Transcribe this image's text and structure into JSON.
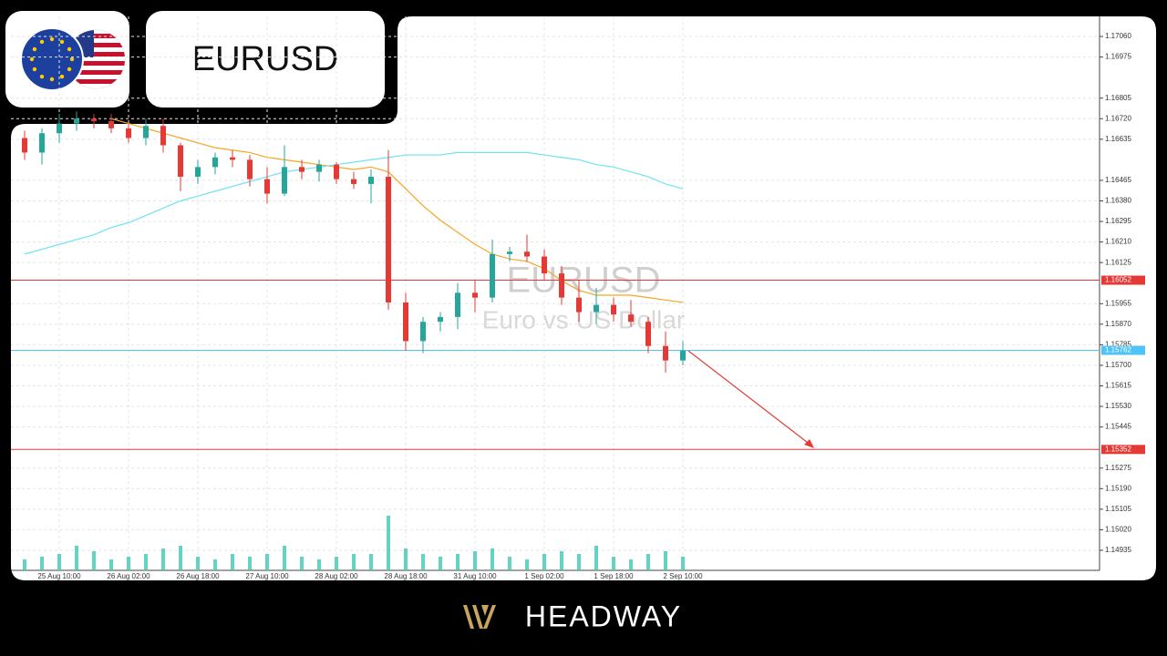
{
  "header": {
    "symbol": "EURUSD"
  },
  "chart_data": {
    "type": "candlestick",
    "watermark_title": "EURUSD",
    "watermark_subtitle": "Euro vs US Dollar",
    "categories": [
      null,
      null,
      "25 Aug 10:00",
      null,
      null,
      null,
      "26 Aug 02:00",
      null,
      null,
      null,
      "26 Aug 18:00",
      null,
      null,
      null,
      "27 Aug 10:00",
      null,
      null,
      null,
      "28 Aug 02:00",
      null,
      null,
      null,
      "28 Aug 18:00",
      null,
      null,
      null,
      "31 Aug 10:00",
      null,
      null,
      null,
      "1 Sep 02:00",
      null,
      null,
      null,
      "1 Sep 18:00",
      null,
      null,
      null,
      "2 Sep 10:00"
    ],
    "open": [
      1.1664,
      1.1658,
      1.1666,
      1.167,
      1.1672,
      1.1671,
      1.1668,
      1.1664,
      1.1669,
      1.1661,
      1.1648,
      1.1652,
      1.1656,
      1.1655,
      1.1647,
      1.1641,
      1.1652,
      1.165,
      1.1653,
      1.1647,
      1.1645,
      1.1648,
      1.1596,
      1.158,
      1.1588,
      1.159,
      1.16,
      1.1598,
      1.1616,
      1.1617,
      1.1615,
      1.1608,
      1.1598,
      1.1592,
      1.1595,
      1.1591,
      1.1588,
      1.1578,
      1.1572
    ],
    "high": [
      1.1667,
      1.1668,
      1.1674,
      1.1675,
      1.1674,
      1.1674,
      1.167,
      1.1672,
      1.1672,
      1.1662,
      1.1655,
      1.1658,
      1.1659,
      1.1657,
      1.1652,
      1.1661,
      1.1655,
      1.1655,
      1.1654,
      1.165,
      1.1651,
      1.1659,
      1.16,
      1.159,
      1.1592,
      1.1604,
      1.1605,
      1.1622,
      1.1619,
      1.1624,
      1.1618,
      1.1611,
      1.1605,
      1.1602,
      1.1598,
      1.1597,
      1.159,
      1.1584,
      1.158
    ],
    "low": [
      1.1655,
      1.1653,
      1.1662,
      1.1667,
      1.1668,
      1.1666,
      1.1662,
      1.1661,
      1.1658,
      1.1642,
      1.1645,
      1.1649,
      1.1652,
      1.1644,
      1.1637,
      1.164,
      1.1647,
      1.1646,
      1.1645,
      1.1643,
      1.1637,
      1.1593,
      1.1576,
      1.1575,
      1.1584,
      1.1585,
      1.1592,
      1.1596,
      1.1613,
      1.1613,
      1.1605,
      1.1595,
      1.1588,
      1.1587,
      1.1588,
      1.1586,
      1.1575,
      1.1567,
      1.157
    ],
    "close": [
      1.1658,
      1.1666,
      1.167,
      1.1672,
      1.1671,
      1.1668,
      1.1664,
      1.1669,
      1.1661,
      1.1648,
      1.1652,
      1.1656,
      1.1655,
      1.1647,
      1.1641,
      1.1652,
      1.165,
      1.1653,
      1.1647,
      1.1645,
      1.1648,
      1.1596,
      1.158,
      1.1588,
      1.159,
      1.16,
      1.1598,
      1.1616,
      1.1617,
      1.1615,
      1.1608,
      1.1598,
      1.1592,
      1.1595,
      1.1591,
      1.1588,
      1.1578,
      1.1572,
      1.1576
    ],
    "volume": [
      20,
      25,
      30,
      45,
      35,
      20,
      25,
      30,
      40,
      45,
      25,
      20,
      30,
      25,
      30,
      45,
      25,
      20,
      25,
      30,
      30,
      100,
      40,
      30,
      25,
      30,
      35,
      40,
      25,
      20,
      30,
      35,
      30,
      45,
      25,
      20,
      30,
      35,
      25
    ],
    "up_color": "#26a69a",
    "down_color": "#e53935",
    "volume_color": "#3cc9b4",
    "moving_averages": [
      {
        "color": "#f5a623",
        "values": [
          null,
          null,
          null,
          null,
          null,
          1.1672,
          1.167,
          1.1668,
          1.1666,
          1.1664,
          1.1662,
          1.166,
          1.1659,
          1.1658,
          1.1656,
          1.1655,
          1.1654,
          1.1653,
          1.1652,
          1.1651,
          1.1652,
          1.165,
          1.1643,
          1.1636,
          1.163,
          1.1625,
          1.162,
          1.1616,
          1.1614,
          1.1613,
          1.161,
          1.1605,
          1.1601,
          1.1599,
          1.1599,
          1.1599,
          1.1598,
          1.1597,
          1.1596
        ]
      },
      {
        "color": "#6fe3f0",
        "values": [
          1.1616,
          1.1618,
          1.162,
          1.1622,
          1.1624,
          1.1627,
          1.1629,
          1.1632,
          1.1635,
          1.1638,
          1.164,
          1.1642,
          1.1644,
          1.1646,
          1.1648,
          1.165,
          1.1651,
          1.1652,
          1.1653,
          1.1654,
          1.1655,
          1.1656,
          1.1657,
          1.1657,
          1.1657,
          1.1658,
          1.1658,
          1.1658,
          1.1658,
          1.1658,
          1.1657,
          1.1656,
          1.1655,
          1.1653,
          1.1652,
          1.165,
          1.1648,
          1.1645,
          1.1643
        ]
      }
    ],
    "levels": [
      {
        "value": 1.16052,
        "color": "#e53935"
      },
      {
        "value": 1.15762,
        "color": "#4fc3f7"
      },
      {
        "value": 1.15352,
        "color": "#e53935"
      }
    ],
    "ylim": [
      1.14852,
      1.17143
    ],
    "yticks": [
      1.14935,
      {
        "value": 1.1502,
        "label": "1.15020"
      },
      1.15105,
      {
        "value": 1.1519,
        "label": "1.15190"
      },
      1.15275,
      1.15445,
      {
        "value": 1.1553,
        "label": "1.15530"
      },
      1.15615,
      {
        "value": 1.157,
        "label": "1.15700"
      },
      1.15785,
      {
        "value": 1.1587,
        "label": "1.15870"
      },
      1.15955,
      1.16125,
      {
        "value": 1.1621,
        "label": "1.16210"
      },
      1.16295,
      {
        "value": 1.1638,
        "label": "1.16380"
      },
      1.16465,
      1.16635,
      {
        "value": 1.1672,
        "label": "1.16720"
      },
      1.16805,
      1.16975,
      {
        "value": 1.1706,
        "label": "1.17060"
      }
    ],
    "grid": true
  },
  "footer": {
    "brand": "HEADWAY"
  }
}
